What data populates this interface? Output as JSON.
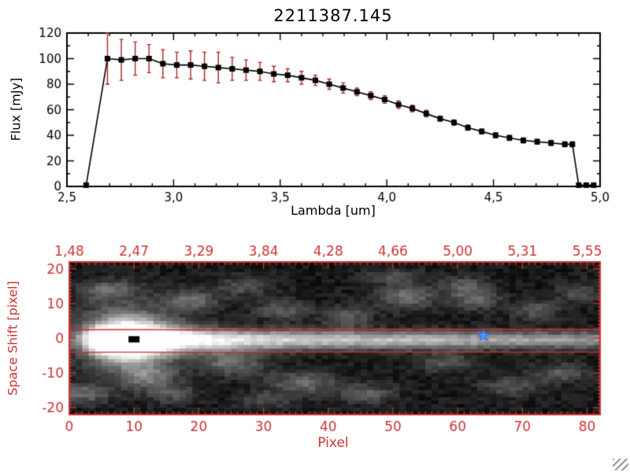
{
  "chart_data": [
    {
      "type": "line",
      "title": "2211387.145",
      "xlabel": "Lambda [um]",
      "ylabel": "Flux [mJy]",
      "xlim": [
        2.5,
        5.0
      ],
      "ylim": [
        0,
        120
      ],
      "x_ticks": [
        2.5,
        3.0,
        3.5,
        4.0,
        4.5,
        5.0
      ],
      "x_tick_labels": [
        "2,5",
        "3,0",
        "3,5",
        "4,0",
        "4,5",
        "5,0"
      ],
      "y_ticks": [
        0,
        20,
        40,
        60,
        80,
        100,
        120
      ],
      "y_tick_labels": [
        "0",
        "20",
        "40",
        "60",
        "80",
        "100",
        "120"
      ],
      "marker": "filled-square",
      "colors": {
        "line": "#000000",
        "marker": "#000000",
        "error": "#b22222",
        "axis": "#000000"
      },
      "x": [
        2.59,
        2.69,
        2.755,
        2.82,
        2.885,
        2.95,
        3.015,
        3.08,
        3.145,
        3.21,
        3.275,
        3.34,
        3.405,
        3.47,
        3.535,
        3.6,
        3.665,
        3.73,
        3.795,
        3.86,
        3.925,
        3.99,
        4.055,
        4.12,
        4.185,
        4.25,
        4.315,
        4.38,
        4.445,
        4.51,
        4.575,
        4.64,
        4.705,
        4.77,
        4.835,
        4.87,
        4.9,
        4.935,
        4.97
      ],
      "y": [
        1,
        100,
        99,
        100,
        100,
        96,
        95,
        95,
        94,
        93,
        92,
        91,
        90,
        88,
        87,
        85,
        83,
        80,
        77,
        74,
        71,
        68,
        64,
        61,
        57,
        53,
        50,
        46,
        43,
        40,
        38,
        36,
        35,
        34,
        33,
        33,
        1,
        1,
        1
      ],
      "yerr": [
        1,
        20,
        16,
        13,
        11,
        11,
        10,
        11,
        11,
        12,
        9,
        8,
        7,
        6,
        5,
        5,
        4,
        4,
        4,
        3,
        3,
        3,
        3,
        2.5,
        2.5,
        2,
        2,
        2,
        2,
        2,
        2,
        2,
        2,
        2,
        2,
        2,
        1,
        1,
        1
      ]
    },
    {
      "type": "heatmap",
      "xlabel": "Pixel",
      "ylabel": "Space Shift [pixel]",
      "xlim": [
        0,
        82
      ],
      "ylim": [
        -22,
        22
      ],
      "x_ticks": [
        0,
        10,
        20,
        30,
        40,
        50,
        60,
        70,
        80
      ],
      "x_tick_labels": [
        "0",
        "10",
        "20",
        "30",
        "40",
        "50",
        "60",
        "70",
        "80"
      ],
      "y_ticks": [
        -20,
        -10,
        0,
        10,
        20
      ],
      "y_tick_labels": [
        "-20",
        "-10",
        "0",
        "10",
        "20"
      ],
      "top_axis_tick_labels": [
        "1,48",
        "2,47",
        "3,29",
        "3,84",
        "4,28",
        "4,66",
        "5,00",
        "5,31",
        "5,55"
      ],
      "axis_color": "#cd3333",
      "aperture_line_y": [
        2.5,
        -4.0
      ],
      "star_marker": {
        "x": 64,
        "y": 0.8,
        "color": "#4d94ff"
      },
      "black_marker": {
        "x": 10,
        "y": -0.3
      },
      "band": {
        "center_y": -0.5,
        "profile": [
          [
            0,
            0.2
          ],
          [
            2,
            0.4
          ],
          [
            4,
            0.95
          ],
          [
            6,
            1.3
          ],
          [
            9,
            1.35
          ],
          [
            12,
            1.2
          ],
          [
            15,
            1.05
          ],
          [
            18,
            0.95
          ],
          [
            22,
            0.88
          ],
          [
            26,
            0.82
          ],
          [
            30,
            0.78
          ],
          [
            35,
            0.72
          ],
          [
            40,
            0.68
          ],
          [
            45,
            0.66
          ],
          [
            50,
            0.65
          ],
          [
            55,
            0.62
          ],
          [
            60,
            0.6
          ],
          [
            65,
            0.57
          ],
          [
            70,
            0.55
          ],
          [
            75,
            0.52
          ],
          [
            80,
            0.5
          ],
          [
            82,
            0.48
          ]
        ],
        "sigma_profile": [
          [
            0,
            1.5
          ],
          [
            4,
            2.8
          ],
          [
            9,
            3.6
          ],
          [
            14,
            2.8
          ],
          [
            20,
            2.2
          ],
          [
            30,
            2.0
          ],
          [
            50,
            1.8
          ],
          [
            82,
            1.7
          ]
        ]
      },
      "blobs": [
        [
          9,
          0,
          0.5,
          6,
          7
        ],
        [
          2,
          -16,
          0.3,
          3,
          2
        ],
        [
          6,
          14,
          0.28,
          3,
          2
        ],
        [
          12,
          -11,
          0.32,
          3,
          2.5
        ],
        [
          19,
          11,
          0.3,
          3,
          2
        ],
        [
          16,
          -16,
          0.22,
          2.5,
          2
        ],
        [
          25,
          -7,
          0.33,
          3.5,
          2.5
        ],
        [
          27,
          15,
          0.22,
          3,
          2
        ],
        [
          33,
          8,
          0.26,
          3,
          2
        ],
        [
          36,
          -13,
          0.3,
          4,
          2.5
        ],
        [
          43,
          6,
          0.28,
          2.5,
          2
        ],
        [
          46,
          -16,
          0.26,
          3,
          2
        ],
        [
          52,
          12,
          0.32,
          3.5,
          2.5
        ],
        [
          58,
          -7,
          0.24,
          3,
          2
        ],
        [
          61,
          15,
          0.26,
          2.5,
          2
        ],
        [
          63,
          11,
          0.28,
          2.5,
          2
        ],
        [
          68,
          -14,
          0.24,
          3,
          2
        ],
        [
          72,
          8,
          0.24,
          2.5,
          2
        ],
        [
          76,
          -10,
          0.26,
          3,
          2
        ],
        [
          79,
          13,
          0.22,
          2.5,
          2
        ],
        [
          30,
          -18,
          0.2,
          3,
          1.5
        ],
        [
          50,
          18,
          0.2,
          3,
          1.5
        ]
      ]
    }
  ]
}
